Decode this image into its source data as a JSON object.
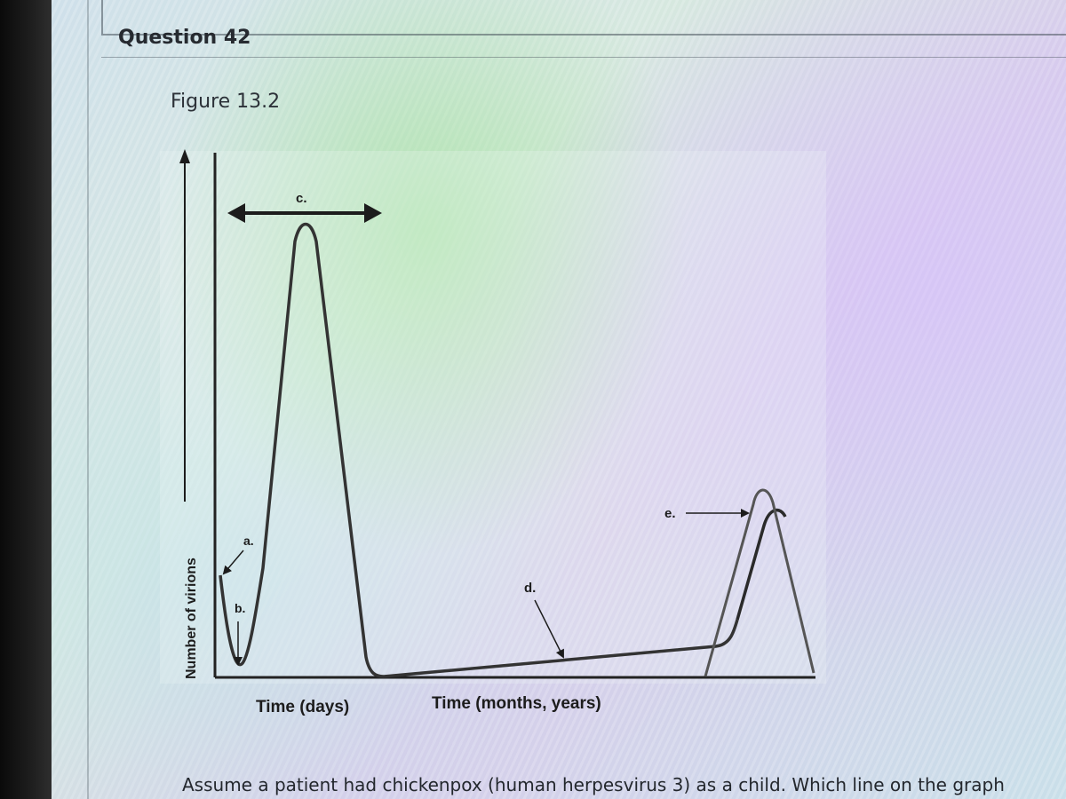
{
  "question": {
    "title": "Question 42",
    "figure_label": "Figure 13.2",
    "text": "Assume a patient had chickenpox (human herpesvirus 3) as a child. Which line on the graph"
  },
  "figure": {
    "y_axis_label": "Number of virions",
    "x_axis_label_left": "Time (days)",
    "x_axis_label_right": "Time (months, years)",
    "labels": {
      "a": "a.",
      "b": "b.",
      "c": "c.",
      "d": "d.",
      "e": "e."
    }
  },
  "colors": {
    "bezel": "#141414",
    "ink": "#1c1c1c",
    "curve_gray": "#4a4a4a"
  }
}
